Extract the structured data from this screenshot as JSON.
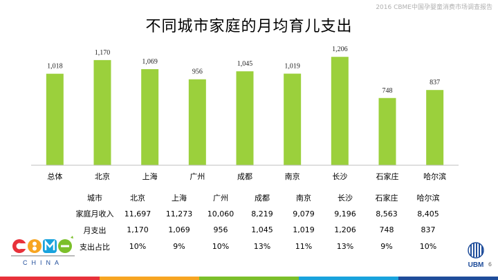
{
  "header_note": "2016 CBME中国孕婴童消费市场调查报告",
  "title": "不同城市家庭的月均育儿支出",
  "chart_data": {
    "type": "bar",
    "title": "不同城市家庭的月均育儿支出",
    "categories": [
      "总体",
      "北京",
      "上海",
      "广州",
      "成都",
      "南京",
      "长沙",
      "石家庄",
      "哈尔滨"
    ],
    "values": [
      1018,
      1170,
      1069,
      956,
      1045,
      1019,
      1206,
      748,
      837
    ],
    "value_labels": [
      "1,018",
      "1,170",
      "1,069",
      "956",
      "1,045",
      "1,019",
      "1,206",
      "748",
      "837"
    ],
    "ylim": [
      0,
      1300
    ],
    "grid": false,
    "bar_color": "#9bd03c"
  },
  "table": {
    "header": [
      "城市",
      "北京",
      "上海",
      "广州",
      "成都",
      "南京",
      "长沙",
      "石家庄",
      "哈尔滨"
    ],
    "rows": [
      [
        "家庭月收入",
        "11,697",
        "11,273",
        "10,060",
        "8,219",
        "9,079",
        "9,196",
        "8,563",
        "8,405"
      ],
      [
        "月支出",
        "1,170",
        "1,069",
        "956",
        "1,045",
        "1,019",
        "1,206",
        "748",
        "837"
      ],
      [
        "支出占比",
        "10%",
        "9%",
        "10%",
        "13%",
        "11%",
        "13%",
        "9%",
        "10%"
      ]
    ]
  },
  "logos": {
    "cbme_text": "CBME",
    "cbme_sub": "CHINA",
    "ubm_text": "UBM"
  },
  "page_number": "6",
  "colors": {
    "bottom_stripes": [
      "#e8313a",
      "#f7a521",
      "#7bbf2a",
      "#19a3dd",
      "#1e4c9a"
    ]
  }
}
